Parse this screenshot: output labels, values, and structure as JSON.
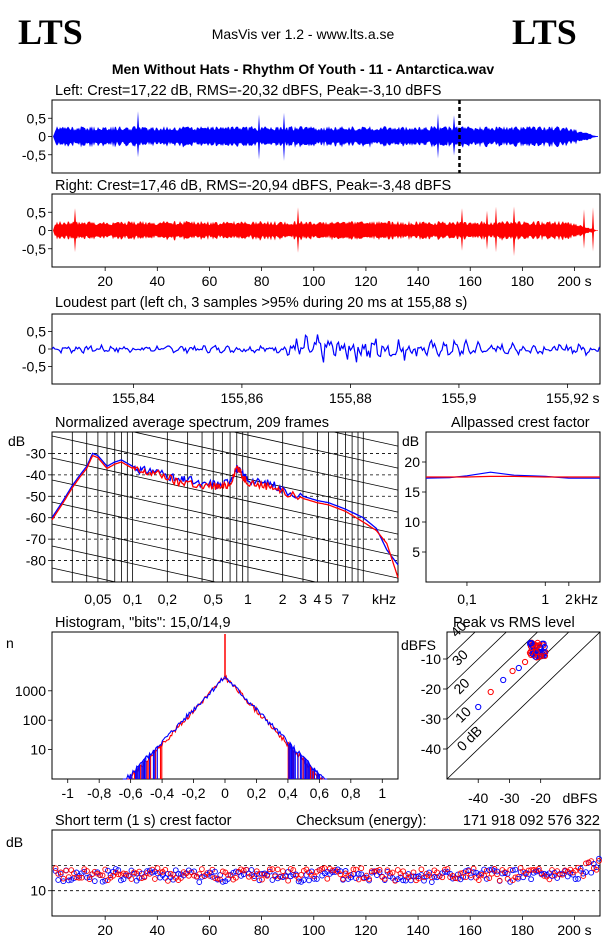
{
  "header": {
    "logo_left": "LTS",
    "logo_right": "LTS",
    "app_title": "MasVis ver 1.2 - www.lts.a.se",
    "file_title": "Men Without Hats - Rhythm Of Youth  - 11 - Antarctica.wav"
  },
  "colors": {
    "left": "#0000ff",
    "right": "#ff0000",
    "frame": "#000000"
  },
  "chart_data": [
    {
      "type": "line",
      "title": "Left: Crest=17,22 dB, RMS=-20,32 dBFS, Peak=-3,10 dBFS",
      "channel": "left",
      "ylim": [
        -1,
        1
      ],
      "yticks": [
        "0,5",
        "0",
        "-0,5"
      ],
      "duration_s": 209,
      "envelope_rms_amplitude": 0.13,
      "peak_amplitude": 0.7,
      "fade_out_start_s": 197,
      "marker_s": 155.88
    },
    {
      "type": "line",
      "title": "Right: Crest=17,46 dB, RMS=-20,94 dBFS, Peak=-3,48 dBFS",
      "channel": "right",
      "ylim": [
        -1,
        1
      ],
      "yticks": [
        "0,5",
        "0",
        "-0,5"
      ],
      "duration_s": 209,
      "envelope_rms_amplitude": 0.12,
      "peak_amplitude": 0.67,
      "fade_out_start_s": 197,
      "xticks": [
        "20",
        "40",
        "60",
        "80",
        "100",
        "120",
        "140",
        "160",
        "180",
        "200 s"
      ]
    },
    {
      "type": "line",
      "title": "Loudest part (left  ch, 3 samples >95% during 20 ms at 155,88 s)",
      "channel": "left",
      "xlim": [
        155.825,
        155.926
      ],
      "ylim": [
        -1,
        1
      ],
      "yticks": [
        "0,5",
        "0",
        "-0,5"
      ],
      "xticks": [
        "155,84",
        "155,86",
        "155,88",
        "155,9",
        "155,92",
        "s"
      ]
    },
    {
      "type": "line",
      "title": "Normalized average spectrum, 209 frames",
      "xscale": "log",
      "xlabel": "kHz",
      "ylabel": "dB",
      "xlim_khz": [
        0.02,
        20
      ],
      "ylim": [
        -90,
        -20
      ],
      "yticks": [
        "-30",
        "-40",
        "-50",
        "-60",
        "-70",
        "-80"
      ],
      "xticks": [
        "0,05",
        "0,1",
        "0,2",
        "0,5",
        "1",
        "2",
        "3",
        "4",
        "5",
        "7",
        "kHz"
      ],
      "series": [
        {
          "channel": "left",
          "points_khz_db": [
            [
              0.02,
              -60
            ],
            [
              0.025,
              -52
            ],
            [
              0.03,
              -45
            ],
            [
              0.035,
              -40
            ],
            [
              0.04,
              -36
            ],
            [
              0.045,
              -30
            ],
            [
              0.05,
              -31
            ],
            [
              0.06,
              -36
            ],
            [
              0.07,
              -34
            ],
            [
              0.08,
              -33
            ],
            [
              0.1,
              -36
            ],
            [
              0.12,
              -38
            ],
            [
              0.15,
              -38
            ],
            [
              0.2,
              -40
            ],
            [
              0.25,
              -43
            ],
            [
              0.3,
              -42
            ],
            [
              0.4,
              -45
            ],
            [
              0.5,
              -44
            ],
            [
              0.6,
              -45
            ],
            [
              0.7,
              -42
            ],
            [
              0.8,
              -37
            ],
            [
              0.9,
              -40
            ],
            [
              1,
              -42
            ],
            [
              1.3,
              -44
            ],
            [
              1.6,
              -44
            ],
            [
              2,
              -47
            ],
            [
              3,
              -50
            ],
            [
              4,
              -52
            ],
            [
              5,
              -53
            ],
            [
              7,
              -56
            ],
            [
              10,
              -60
            ],
            [
              13,
              -65
            ],
            [
              16,
              -75
            ],
            [
              20,
              -82
            ]
          ]
        },
        {
          "channel": "right",
          "points_khz_db": [
            [
              0.02,
              -61
            ],
            [
              0.025,
              -53
            ],
            [
              0.03,
              -46
            ],
            [
              0.035,
              -41
            ],
            [
              0.04,
              -37
            ],
            [
              0.045,
              -31
            ],
            [
              0.05,
              -32
            ],
            [
              0.06,
              -37
            ],
            [
              0.07,
              -35
            ],
            [
              0.08,
              -34
            ],
            [
              0.1,
              -37
            ],
            [
              0.12,
              -39
            ],
            [
              0.15,
              -39
            ],
            [
              0.2,
              -41
            ],
            [
              0.25,
              -44
            ],
            [
              0.3,
              -43
            ],
            [
              0.4,
              -46
            ],
            [
              0.5,
              -45
            ],
            [
              0.6,
              -46
            ],
            [
              0.7,
              -44
            ],
            [
              0.8,
              -36
            ],
            [
              0.9,
              -41
            ],
            [
              1,
              -43
            ],
            [
              1.3,
              -45
            ],
            [
              1.6,
              -45
            ],
            [
              2,
              -48
            ],
            [
              3,
              -51
            ],
            [
              4,
              -53
            ],
            [
              5,
              -54
            ],
            [
              7,
              -57
            ],
            [
              10,
              -62
            ],
            [
              13,
              -66
            ],
            [
              16,
              -72
            ],
            [
              20,
              -88
            ]
          ]
        }
      ]
    },
    {
      "type": "line",
      "title": "Allpassed crest factor",
      "xscale": "log",
      "xlabel": "kHz",
      "ylabel": "dB",
      "xlim_khz": [
        0.03,
        5
      ],
      "ylim": [
        0,
        25
      ],
      "yticks": [
        "20",
        "15",
        "10",
        "5"
      ],
      "xticks": [
        "0,1",
        "1",
        "2",
        "kHz"
      ],
      "series": [
        {
          "channel": "left",
          "points_khz_db": [
            [
              0.03,
              17.3
            ],
            [
              0.06,
              17.4
            ],
            [
              0.1,
              17.7
            ],
            [
              0.2,
              18.3
            ],
            [
              0.4,
              17.8
            ],
            [
              1,
              17.6
            ],
            [
              2,
              17.3
            ],
            [
              5,
              17.3
            ]
          ]
        },
        {
          "channel": "right",
          "points_khz_db": [
            [
              0.03,
              17.5
            ],
            [
              0.06,
              17.5
            ],
            [
              0.1,
              17.5
            ],
            [
              0.2,
              17.6
            ],
            [
              0.4,
              17.6
            ],
            [
              1,
              17.5
            ],
            [
              2,
              17.5
            ],
            [
              5,
              17.5
            ]
          ]
        }
      ]
    },
    {
      "type": "line",
      "title": "Histogram, \"bits\": 15,0/14,9",
      "yscale": "log",
      "ylabel": "n",
      "xlim": [
        -1.1,
        1.1
      ],
      "ylim": [
        1,
        100000
      ],
      "yticks": [
        "1000",
        "100",
        "10"
      ],
      "xticks": [
        "-1",
        "-0,8",
        "-0,6",
        "-0,4",
        "-0,2",
        "0",
        "0,2",
        "0,4",
        "0,6",
        "0,8",
        "1"
      ],
      "peak_count": 3000,
      "extent": 0.65
    },
    {
      "type": "scatter",
      "title": "Peak vs RMS level",
      "xlabel": "dBFS",
      "ylabel": "dBFS",
      "xlim": [
        -50,
        -1
      ],
      "ylim": [
        -50,
        -1
      ],
      "xticks": [
        "-40",
        "-30",
        "-20",
        "dBFS"
      ],
      "yticks": [
        "-10",
        "-20",
        "-30",
        "-40"
      ],
      "diagonal_labels": [
        "40",
        "30",
        "20",
        "10",
        "0 dB"
      ],
      "cluster_center": [
        -21,
        -7
      ],
      "outliers": [
        [
          -40,
          -26
        ],
        [
          -36,
          -21
        ],
        [
          -32,
          -17
        ],
        [
          -29,
          -14
        ],
        [
          -27,
          -13
        ],
        [
          -25,
          -11
        ]
      ]
    },
    {
      "type": "scatter",
      "title": "Short term (1 s) crest factor",
      "ylabel": "dB",
      "ylim": [
        5,
        22
      ],
      "yticks": [
        "10"
      ],
      "dashed_lines_db": [
        10,
        15
      ],
      "duration_s": 209,
      "mean_db": 13,
      "xticks": [
        "20",
        "40",
        "60",
        "80",
        "100",
        "120",
        "140",
        "160",
        "180",
        "200 s"
      ]
    }
  ],
  "checksum": {
    "label": "Checksum (energy):",
    "value": "171 918 092 576 322"
  }
}
